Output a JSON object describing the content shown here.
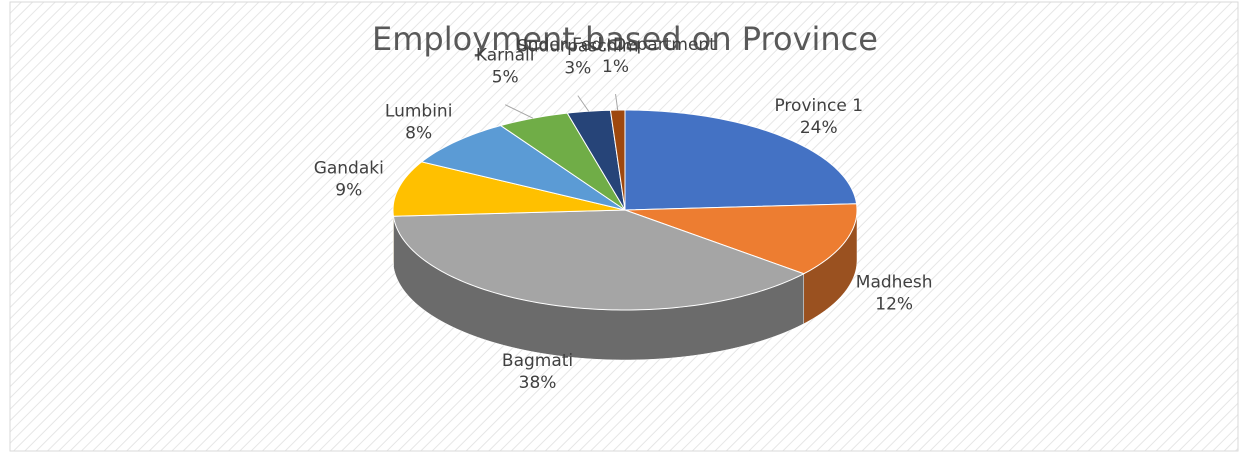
{
  "chart_data": {
    "type": "pie",
    "title": "Employment based on Province",
    "categories": [
      "Province 1",
      "Madhesh",
      "Bagmati",
      "Gandaki",
      "Lumbini",
      "Karnali",
      "Sudurpaschim",
      "Under Fed. Department"
    ],
    "values": [
      24,
      12,
      38,
      9,
      8,
      5,
      3,
      1
    ],
    "value_labels": [
      "24%",
      "12%",
      "38%",
      "9%",
      "8%",
      "5%",
      "3%",
      "1%"
    ],
    "colors": [
      "#4472c4",
      "#ed7d31",
      "#a5a5a5",
      "#ffc000",
      "#5b9bd5",
      "#70ad47",
      "#264478",
      "#9e480e"
    ]
  }
}
